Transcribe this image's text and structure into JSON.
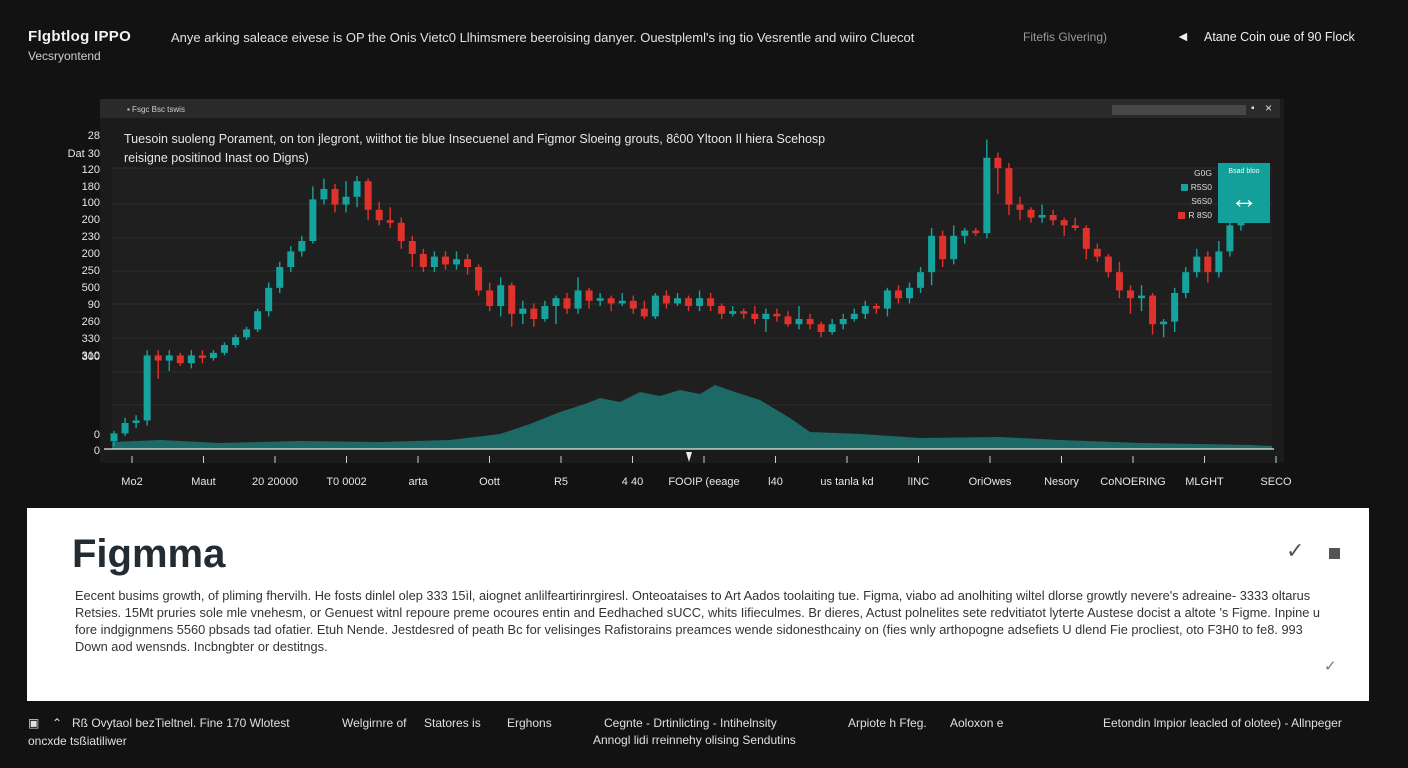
{
  "header": {
    "brand": "Flgbtlog IPPO",
    "brand_sub": "Vecsryontend",
    "headline": "Anye arking  saleace eivese  is  OP the Onis Vietc0 Llhimsmere beeroising danyer. Ouestpleml's ing tio Vesrentle and wiiro Cluecot",
    "filters": "Fitefis Glvering)",
    "back_icon": "back-arrow-icon",
    "back_label": "Atane Coin oue of  90 Flock"
  },
  "chart_window": {
    "tab_label": "▪  Fsgc Bsc tswis",
    "minimize_icon": "▪",
    "close_icon": "×",
    "annotation": [
      "Tuesoin suoleng Porament, on ton  jlegront, wiithot tie blue Insecuenel and Figmor Sloeing grouts,  8ĉ00 Yltoon Il hiera  Scehosp",
      "reisigne positinod Inast oo Digns)"
    ]
  },
  "chart_data": {
    "type": "candlestick",
    "y_tick_labels": [
      "28",
      "Dat 30",
      "120",
      "180",
      "100",
      "200",
      "230",
      "200",
      "250",
      "500",
      "90",
      "260",
      "330",
      "310",
      "300",
      "0",
      "0"
    ],
    "x_tick_labels": [
      "Mo2",
      "Maut",
      "20 20000",
      "T0 0002",
      "arta",
      "Oott",
      "R5",
      "4 40",
      "FOOIP (eeage",
      "l40",
      "us tanla kd",
      "lINC",
      "OriOwes",
      "Nesory",
      "CoNOERING",
      "MLGHT",
      "SECO"
    ],
    "candles": [
      [
        3,
        6,
        1,
        7
      ],
      [
        6,
        10,
        5,
        12
      ],
      [
        10,
        11,
        8,
        13
      ],
      [
        11,
        36,
        9,
        38
      ],
      [
        36,
        34,
        27,
        38
      ],
      [
        34,
        36,
        30,
        38
      ],
      [
        36,
        33,
        32,
        37
      ],
      [
        33,
        36,
        31,
        38
      ],
      [
        36,
        35,
        33,
        38
      ],
      [
        35,
        37,
        34,
        38
      ],
      [
        37,
        40,
        36,
        41
      ],
      [
        40,
        43,
        39,
        44
      ],
      [
        43,
        46,
        42,
        47
      ],
      [
        46,
        53,
        45,
        54
      ],
      [
        53,
        62,
        51,
        64
      ],
      [
        62,
        70,
        60,
        72
      ],
      [
        70,
        76,
        68,
        78
      ],
      [
        76,
        80,
        74,
        82
      ],
      [
        80,
        96,
        79,
        101
      ],
      [
        96,
        100,
        94,
        104
      ],
      [
        100,
        94,
        91,
        102
      ],
      [
        94,
        97,
        91,
        103
      ],
      [
        97,
        103,
        93,
        105
      ],
      [
        103,
        92,
        88,
        104
      ],
      [
        92,
        88,
        86,
        95
      ],
      [
        88,
        87,
        85,
        93
      ],
      [
        87,
        80,
        77,
        89
      ],
      [
        80,
        75,
        70,
        82
      ],
      [
        75,
        70,
        68,
        77
      ],
      [
        70,
        74,
        68,
        76
      ],
      [
        74,
        71,
        69,
        76
      ],
      [
        71,
        73,
        69,
        76
      ],
      [
        73,
        70,
        67,
        75
      ],
      [
        70,
        61,
        59,
        71
      ],
      [
        61,
        55,
        53,
        64
      ],
      [
        55,
        63,
        51,
        66
      ],
      [
        63,
        52,
        47,
        64
      ],
      [
        52,
        54,
        48,
        57
      ],
      [
        54,
        50,
        47,
        56
      ],
      [
        50,
        55,
        49,
        57
      ],
      [
        55,
        58,
        48,
        59
      ],
      [
        58,
        54,
        52,
        60
      ],
      [
        54,
        61,
        52,
        66
      ],
      [
        61,
        57,
        54,
        62
      ],
      [
        57,
        58,
        55,
        60
      ],
      [
        58,
        56,
        53,
        59
      ],
      [
        56,
        57,
        55,
        60
      ],
      [
        57,
        54,
        52,
        59
      ],
      [
        54,
        51,
        50,
        57
      ],
      [
        51,
        59,
        50,
        60
      ],
      [
        59,
        56,
        54,
        61
      ],
      [
        56,
        58,
        55,
        60
      ],
      [
        58,
        55,
        53,
        59
      ],
      [
        55,
        58,
        53,
        61
      ],
      [
        58,
        55,
        53,
        60
      ],
      [
        55,
        52,
        50,
        56
      ],
      [
        52,
        53,
        51,
        55
      ],
      [
        53,
        52,
        50,
        54
      ],
      [
        52,
        50,
        48,
        55
      ],
      [
        50,
        52,
        45,
        54
      ],
      [
        52,
        51,
        49,
        54
      ],
      [
        51,
        48,
        47,
        53
      ],
      [
        48,
        50,
        46,
        55
      ],
      [
        50,
        48,
        46,
        52
      ],
      [
        48,
        45,
        43,
        49
      ],
      [
        45,
        48,
        44,
        50
      ],
      [
        48,
        50,
        46,
        52
      ],
      [
        50,
        52,
        49,
        54
      ],
      [
        52,
        55,
        50,
        57
      ],
      [
        55,
        54,
        52,
        56
      ],
      [
        54,
        61,
        51,
        62
      ],
      [
        61,
        58,
        56,
        63
      ],
      [
        58,
        62,
        56,
        64
      ],
      [
        62,
        68,
        60,
        70
      ],
      [
        68,
        82,
        63,
        85
      ],
      [
        82,
        73,
        70,
        84
      ],
      [
        73,
        82,
        71,
        86
      ],
      [
        82,
        84,
        79,
        85
      ],
      [
        84,
        83,
        82,
        85
      ],
      [
        83,
        112,
        81,
        119
      ],
      [
        112,
        108,
        98,
        114
      ],
      [
        108,
        94,
        90,
        110
      ],
      [
        94,
        92,
        88,
        97
      ],
      [
        92,
        89,
        87,
        93
      ],
      [
        89,
        90,
        87,
        94
      ],
      [
        90,
        88,
        86,
        92
      ],
      [
        88,
        86,
        82,
        89
      ],
      [
        86,
        85,
        84,
        89
      ],
      [
        85,
        77,
        73,
        86
      ],
      [
        77,
        74,
        72,
        79
      ],
      [
        74,
        68,
        66,
        75
      ],
      [
        68,
        61,
        58,
        72
      ],
      [
        61,
        58,
        52,
        63
      ],
      [
        58,
        59,
        53,
        63
      ],
      [
        59,
        48,
        44,
        60
      ],
      [
        48,
        49,
        43,
        50
      ],
      [
        49,
        60,
        45,
        62
      ],
      [
        60,
        68,
        58,
        70
      ],
      [
        68,
        74,
        66,
        77
      ],
      [
        74,
        68,
        64,
        76
      ],
      [
        68,
        76,
        66,
        80
      ],
      [
        76,
        86,
        74,
        92
      ],
      [
        86,
        93,
        84,
        100
      ],
      [
        93,
        90,
        87,
        96
      ]
    ]
  },
  "card": {
    "title": "Figmma",
    "check_icon": "✓",
    "body": "Eecent busims growth, of pliming fhervilh. He fosts dinlel olep 333 15ìl, aiognet anlilfeartirinrgiresl. Onteoataises to Art Aados toolaiting tue. Figma, viabo ad anolhiting wiltel dlorse growtly nevere's adreaine- 3333 oltarus Retsies. 15Mt pruries sole mle vnehesm, or Genuest witnl repoure preme ocoures entin and Eedhached sUCC, whits Iifieculmes. Br dieres, Actust polnelites sete redvitiatot lyterte Austese docist a altote 's Figme. Inpine u fore indgignmens 5560 pbsads tad ofatier. Etuh Nende. Jestdesred of peath Bc for velisinges Rafistorains preamces wende sidonesthcainy on (fies wnly arthopogne adsefiets U dlend Fie procliest, oto F3H0 to fe8. 993 Down aod wensnds. Incbngbter or destitngs.",
    "check_icon_2": "✓"
  },
  "footer": {
    "items": [
      "▣",
      "⌃",
      "Rß  Ovytaol bezTieltnel. Fine  170  Wlotest",
      "oncxde tsßiatiliwer",
      "Welgirnre of",
      "Statores is",
      "Erghons",
      "Cegnte  -  Drtinlicting  -  Intihelnsity",
      "Annogl lidi rreinnehy olising Sendutins",
      "Arpiote h Ffeg.",
      "Aoloxon e",
      "Eetondin lmpior leacled of olotee) -  Allnpeger"
    ]
  },
  "colors": {
    "bull": "#16a39d",
    "bear": "#e0322c",
    "area": "#1d7773",
    "background": "#121212",
    "panel": "#1b1b1b"
  }
}
